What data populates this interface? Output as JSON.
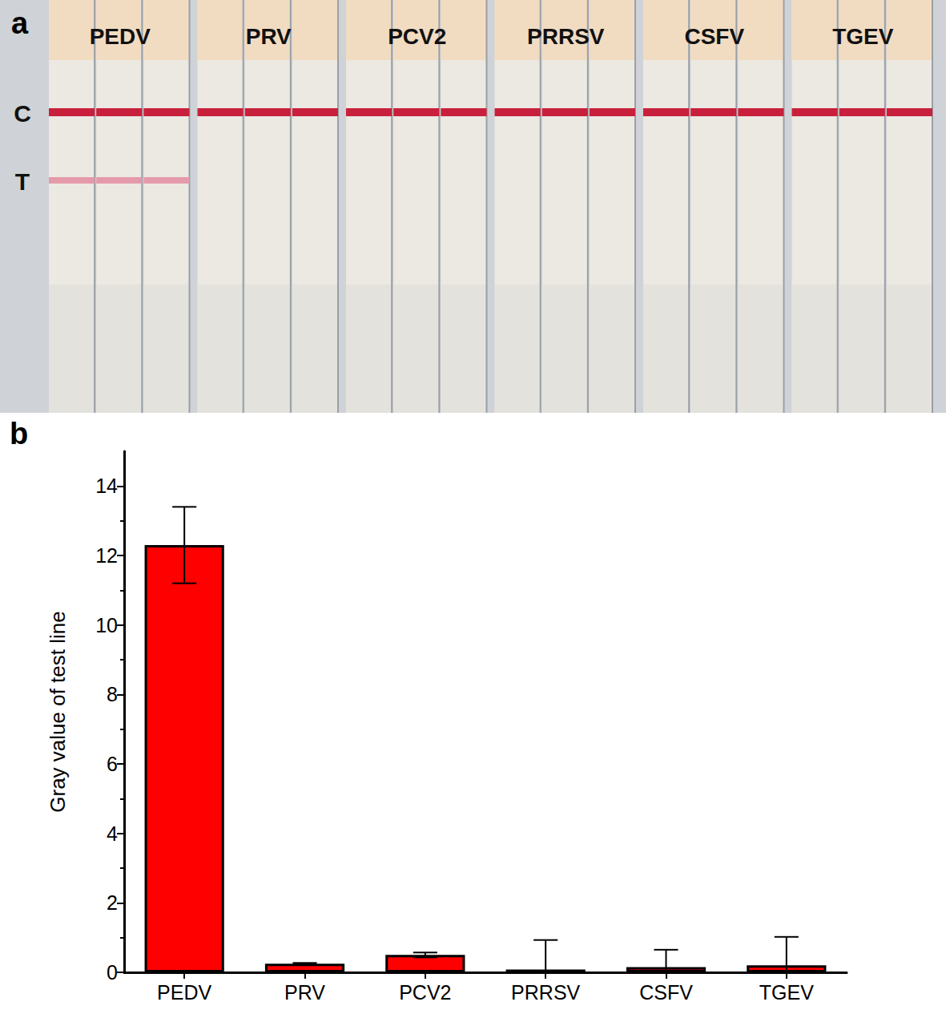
{
  "figure": {
    "panels": [
      "a",
      "b"
    ]
  },
  "strip_panel": {
    "samples": [
      "PEDV",
      "PRV",
      "PCV2",
      "PRRSV",
      "CSFV",
      "TGEV"
    ],
    "line_labels": [
      "C",
      "T"
    ],
    "test_line": [
      true,
      false,
      false,
      false,
      false,
      false
    ],
    "strips_per_sample": 3
  },
  "chart_data": {
    "type": "bar",
    "categories": [
      "PEDV",
      "PRV",
      "PCV2",
      "PRRSV",
      "CSFV",
      "TGEV"
    ],
    "values": [
      12.3,
      0.25,
      0.5,
      0.08,
      0.15,
      0.2
    ],
    "errors": [
      1.1,
      0.02,
      0.07,
      0.85,
      0.5,
      0.82
    ],
    "color": "#ff0000",
    "y_label": "Gray value of test line",
    "ylim": [
      0,
      15
    ],
    "yticks": [
      0,
      2,
      4,
      6,
      8,
      10,
      12,
      14
    ],
    "grid": false
  }
}
